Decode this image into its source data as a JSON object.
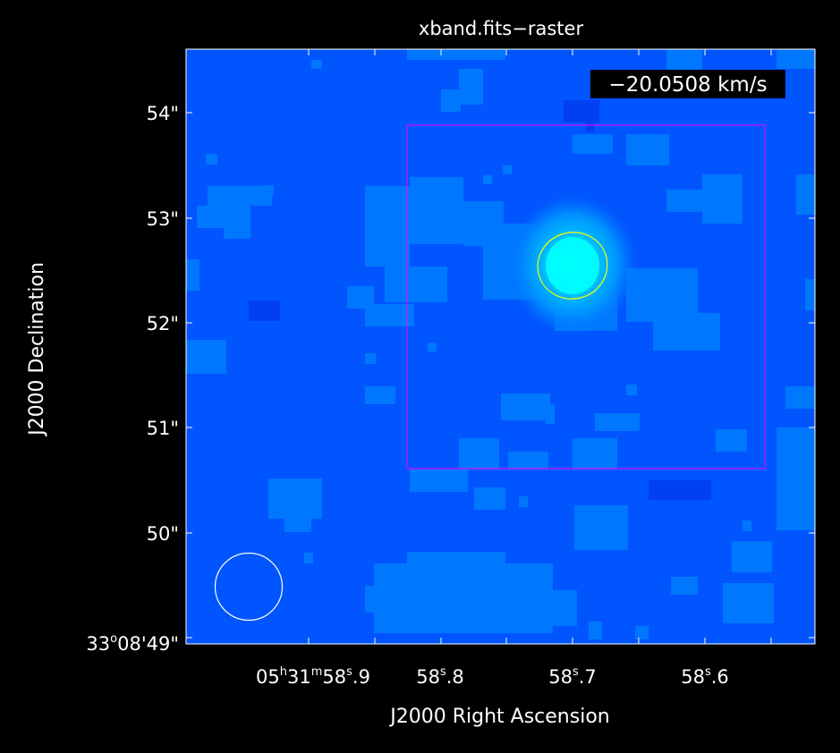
{
  "title": "xband.fits−raster",
  "velocity_label": "−20.0508 km/s",
  "xlabel": "J2000 Right Ascension",
  "ylabel": "J2000 Declination",
  "dec_ticks": [
    "54\"",
    "53\"",
    "52\"",
    "51\"",
    "50\""
  ],
  "dec_origin": {
    "deg": "33",
    "deg_sym": "o",
    "rest": "08'49\""
  },
  "ra_ticks": [
    {
      "h": "05",
      "h_sym": "h",
      "m": "31",
      "m_sym": "m",
      "s": "58",
      "s_sym": "s",
      "frac": ".9"
    },
    {
      "s": "58",
      "s_sym": "s",
      "frac": ".8"
    },
    {
      "s": "58",
      "s_sym": "s",
      "frac": ".7"
    },
    {
      "s": "58",
      "s_sym": "s",
      "frac": ".6"
    }
  ],
  "colors": {
    "background_blue": "#0055ff",
    "mid_blue": "#0077ff",
    "dark_blue": "#0040f0",
    "peak_cyan": "#00ffff",
    "region_box": "#ff00ff",
    "source_ellipse": "#ffff00",
    "beam": "#ffffff"
  }
}
